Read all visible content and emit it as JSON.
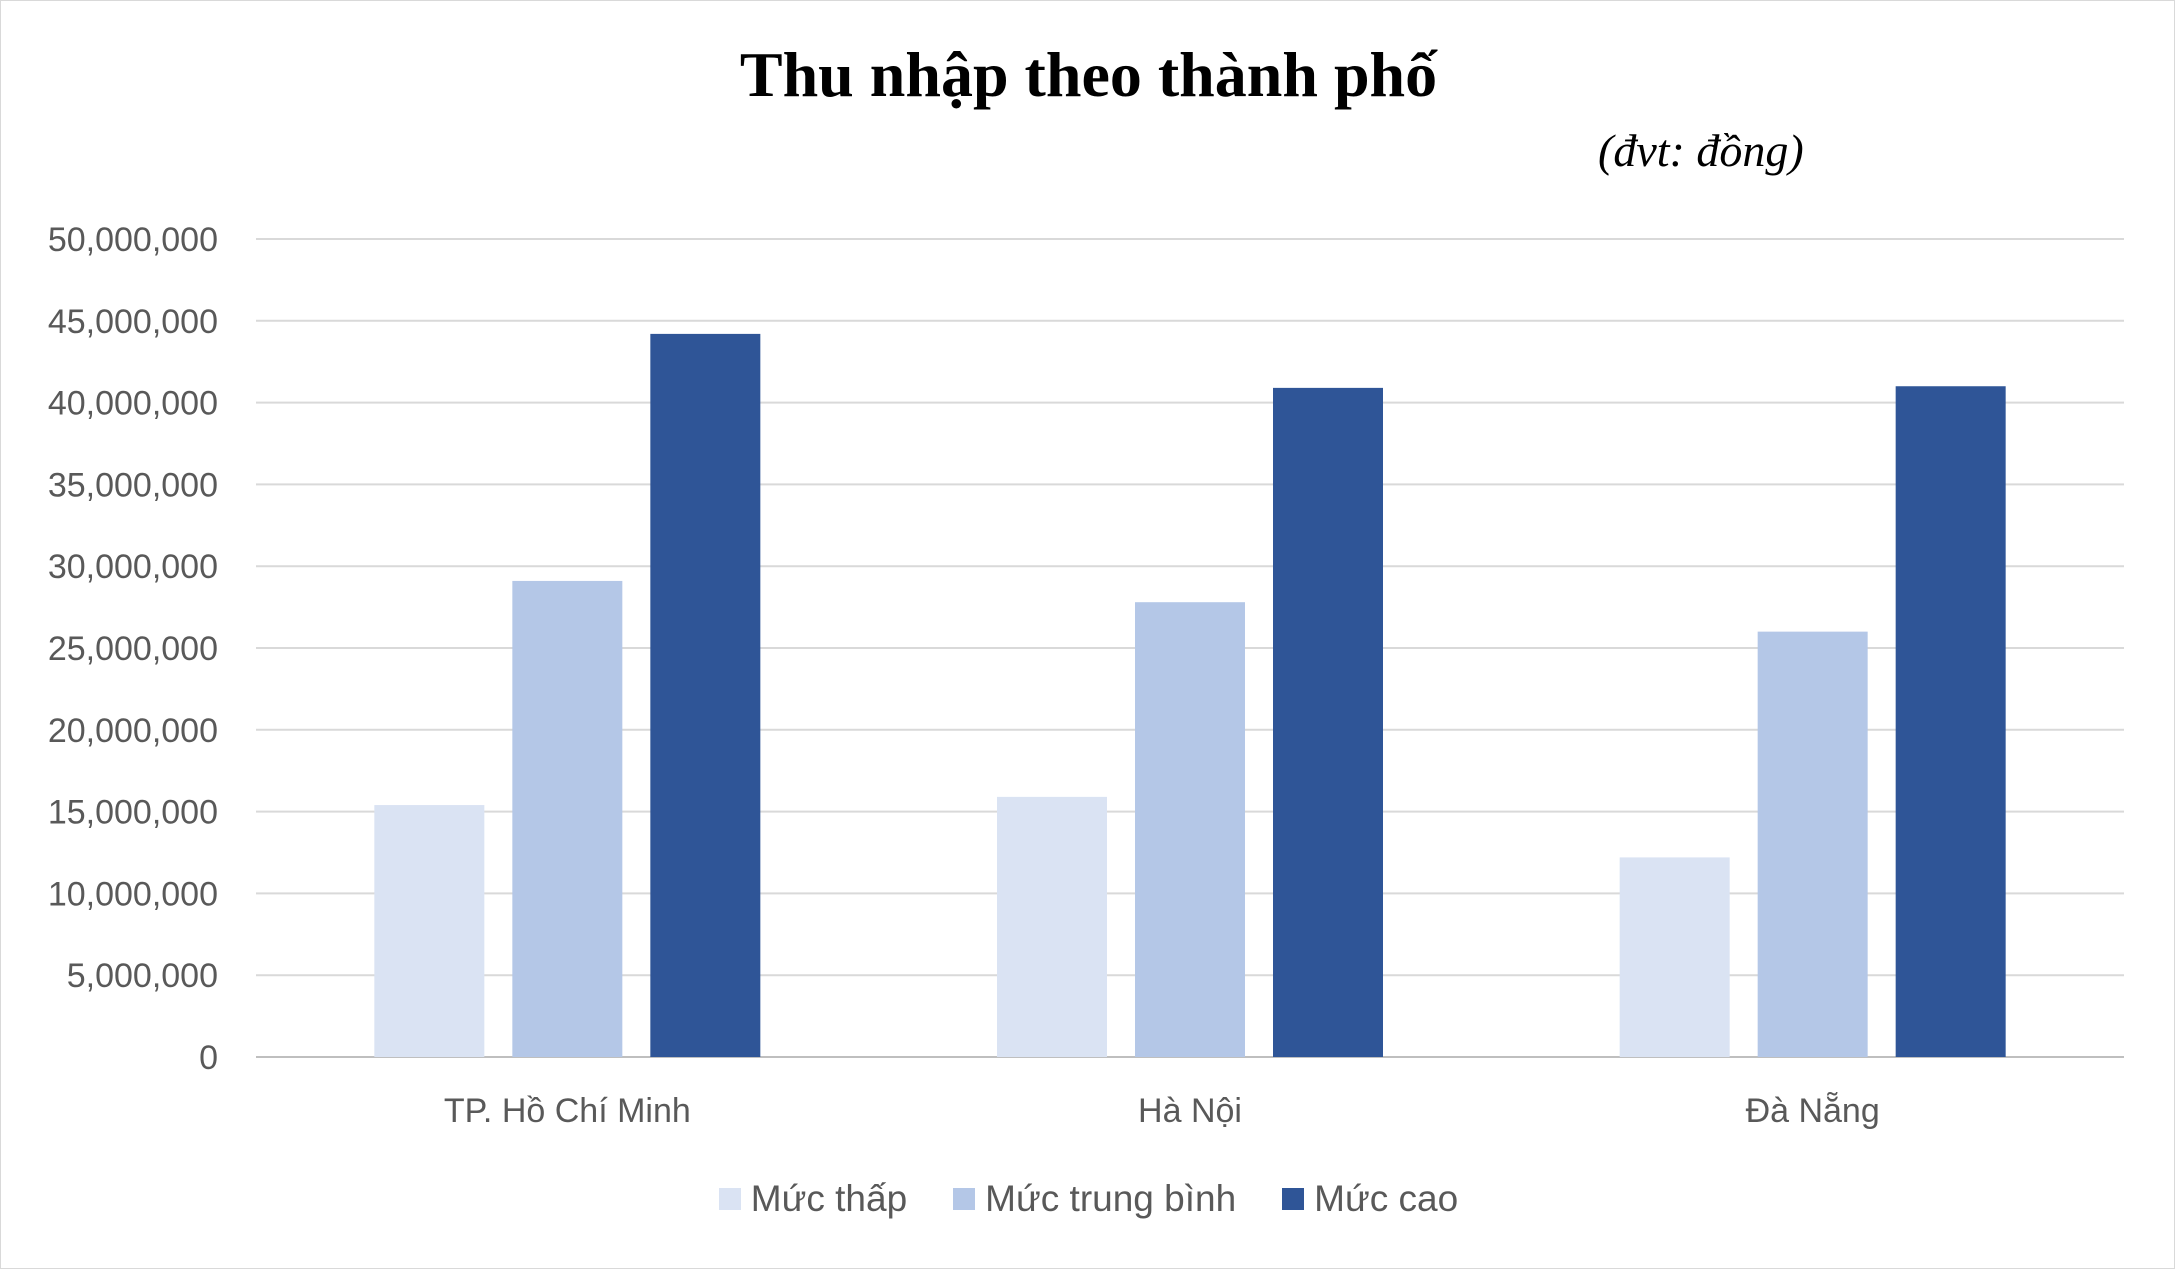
{
  "chart_data": {
    "type": "bar",
    "title": "Thu nhập theo thành phố",
    "subtitle": "(đvt: đồng)",
    "categories": [
      "TP. Hồ Chí Minh",
      "Hà Nội",
      "Đà Nẵng"
    ],
    "series": [
      {
        "name": "Mức thấp",
        "color": "#dae3f3",
        "values": [
          15400000,
          15900000,
          12200000
        ]
      },
      {
        "name": "Mức trung bình",
        "color": "#b4c7e7",
        "values": [
          29100000,
          27800000,
          26000000
        ]
      },
      {
        "name": "Mức cao",
        "color": "#2f5597",
        "values": [
          44200000,
          40900000,
          41000000
        ]
      }
    ],
    "ylim": [
      0,
      50000000
    ],
    "yticks": [
      "0",
      "5,000,000",
      "10,000,000",
      "15,000,000",
      "20,000,000",
      "25,000,000",
      "30,000,000",
      "35,000,000",
      "40,000,000",
      "45,000,000",
      "50,000,000"
    ],
    "grid": true,
    "legend_position": "bottom"
  }
}
